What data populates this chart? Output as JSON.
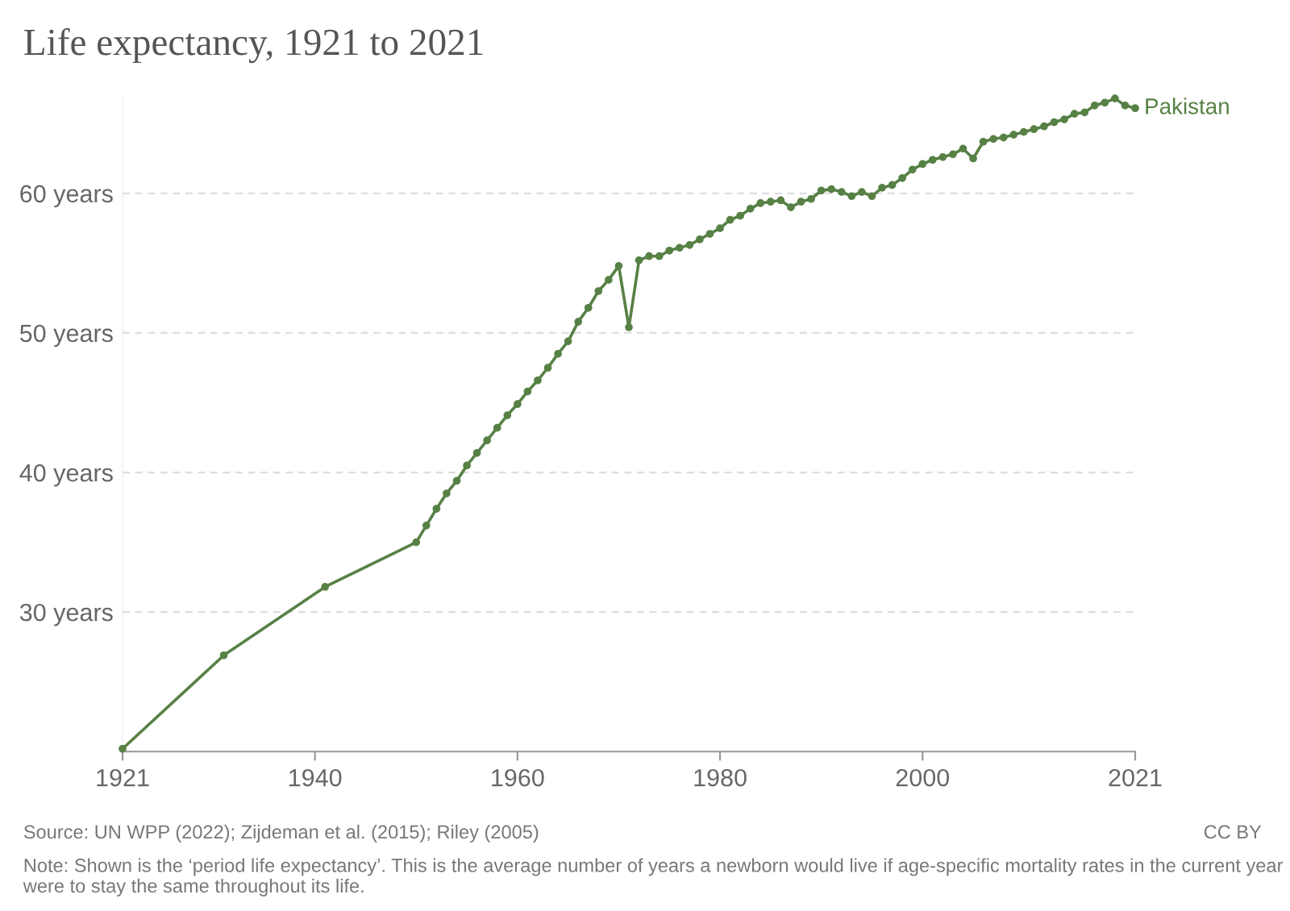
{
  "chart_data": {
    "type": "line",
    "title": "Life expectancy, 1921 to 2021",
    "x": [
      1921,
      1931,
      1941,
      1950,
      1951,
      1952,
      1953,
      1954,
      1955,
      1956,
      1957,
      1958,
      1959,
      1960,
      1961,
      1962,
      1963,
      1964,
      1965,
      1966,
      1967,
      1968,
      1969,
      1970,
      1971,
      1972,
      1973,
      1974,
      1975,
      1976,
      1977,
      1978,
      1979,
      1980,
      1981,
      1982,
      1983,
      1984,
      1985,
      1986,
      1987,
      1988,
      1989,
      1990,
      1991,
      1992,
      1993,
      1994,
      1995,
      1996,
      1997,
      1998,
      1999,
      2000,
      2001,
      2002,
      2003,
      2004,
      2005,
      2006,
      2007,
      2008,
      2009,
      2010,
      2011,
      2012,
      2013,
      2014,
      2015,
      2016,
      2017,
      2018,
      2019,
      2020,
      2021
    ],
    "series": [
      {
        "name": "Pakistan",
        "color": "#578145",
        "values": [
          20.2,
          26.9,
          31.8,
          35.0,
          36.2,
          37.4,
          38.5,
          39.4,
          40.5,
          41.4,
          42.3,
          43.2,
          44.1,
          44.9,
          45.8,
          46.6,
          47.5,
          48.5,
          49.4,
          50.8,
          51.8,
          53.0,
          53.8,
          54.8,
          50.4,
          55.2,
          55.5,
          55.5,
          55.9,
          56.1,
          56.3,
          56.7,
          57.1,
          57.5,
          58.1,
          58.4,
          58.9,
          59.3,
          59.4,
          59.5,
          59.0,
          59.4,
          59.6,
          60.2,
          60.3,
          60.1,
          59.8,
          60.1,
          59.8,
          60.4,
          60.6,
          61.1,
          61.7,
          62.1,
          62.4,
          62.6,
          62.8,
          63.2,
          62.5,
          63.7,
          63.9,
          64.0,
          64.2,
          64.4,
          64.6,
          64.8,
          65.1,
          65.3,
          65.7,
          65.8,
          66.3,
          66.5,
          66.8,
          66.3,
          66.1
        ]
      }
    ],
    "xlim": [
      1921,
      2021
    ],
    "xticks": [
      1921,
      1940,
      1960,
      1980,
      2000,
      2021
    ],
    "ylim": [
      20,
      67
    ],
    "yticks": [
      {
        "value": 30,
        "label": "30 years"
      },
      {
        "value": 40,
        "label": "40 years"
      },
      {
        "value": 50,
        "label": "50 years"
      },
      {
        "value": 60,
        "label": "60 years"
      }
    ],
    "grid": "y",
    "marker": "circle",
    "line_style": "solid",
    "annotations": [
      "Source: UN WPP (2022); Zijdeman et al. (2015); Riley (2005)",
      "CC BY",
      "Note: Shown is the ‘period life expectancy’. This is the average number of years a newborn would live if age-specific mortality rates in the current year were to stay the same throughout its life."
    ]
  }
}
